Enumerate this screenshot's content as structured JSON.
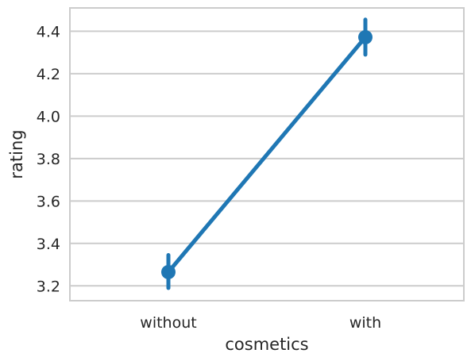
{
  "chart_data": {
    "type": "line",
    "title": "",
    "xlabel": "cosmetics",
    "ylabel": "rating",
    "categories": [
      "without",
      "with"
    ],
    "series": [
      {
        "values": [
          3.265,
          4.372
        ],
        "ci_low": [
          3.19,
          4.29
        ],
        "ci_high": [
          3.345,
          4.455
        ],
        "color": "#1f77b4"
      }
    ],
    "ylim": [
      3.13,
      4.51
    ],
    "yticks": [
      "3.2",
      "3.4",
      "3.6",
      "3.8",
      "4.0",
      "4.2",
      "4.4"
    ],
    "grid": "horizontal"
  }
}
